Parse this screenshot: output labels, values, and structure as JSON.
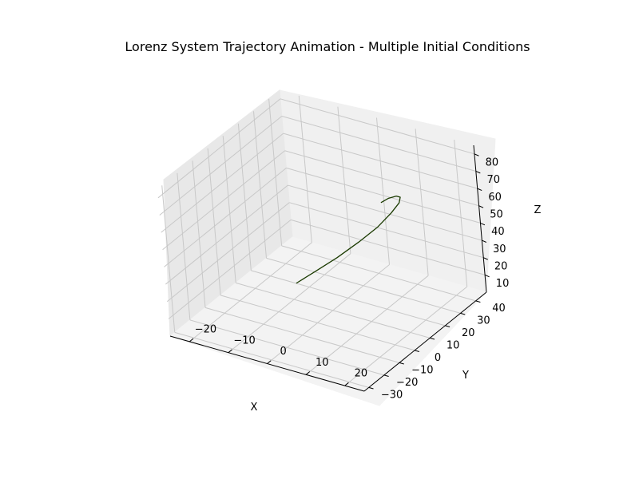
{
  "chart_data": {
    "type": "line",
    "projection": "3d",
    "title": "Lorenz System Trajectory Animation - Multiple Initial Conditions",
    "xlabel": "X",
    "ylabel": "Y",
    "zlabel": "Z",
    "xlim": [
      -25,
      25
    ],
    "ylim": [
      -33,
      47
    ],
    "zlim": [
      0,
      85
    ],
    "xticks": [
      -20,
      -10,
      0,
      10,
      20
    ],
    "yticks": [
      -30,
      -20,
      -10,
      0,
      10,
      20,
      30,
      40
    ],
    "zticks": [
      10,
      20,
      30,
      40,
      50,
      60,
      70,
      80
    ],
    "grid": true,
    "series": [
      {
        "color": "#1a3a00",
        "x": [
          -0.3,
          2.5,
          5.8,
          9.1,
          12.0,
          14.1,
          15.4,
          15.6,
          14.9,
          13.4,
          11.9
        ],
        "y": [
          -10.0,
          -4.5,
          2.0,
          8.5,
          14.0,
          18.2,
          20.6,
          21.1,
          20.4,
          19.0,
          17.8
        ],
        "z": [
          30.0,
          34.5,
          40.0,
          46.5,
          53.0,
          59.5,
          64.5,
          67.5,
          68.2,
          67.0,
          64.5
        ]
      }
    ]
  }
}
